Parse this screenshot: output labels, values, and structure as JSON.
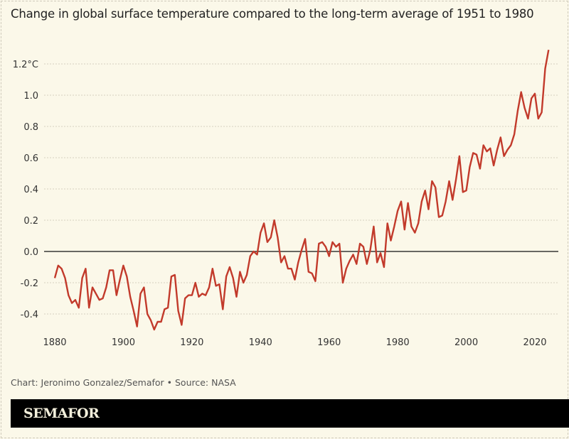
{
  "chart_data": {
    "type": "line",
    "title": "Change in global surface temperature compared to the long-term average of 1951 to 1980",
    "xlabel": "",
    "ylabel": "",
    "xlim": [
      1880,
      2024
    ],
    "ylim": [
      -0.5,
      1.3
    ],
    "x_ticks": [
      "1880",
      "1900",
      "1920",
      "1940",
      "1960",
      "1980",
      "2000",
      "2020"
    ],
    "y_ticks": [
      {
        "value": 1.2,
        "label": "1.2°C"
      },
      {
        "value": 1.0,
        "label": "1.0"
      },
      {
        "value": 0.8,
        "label": "0.8"
      },
      {
        "value": 0.6,
        "label": "0.6"
      },
      {
        "value": 0.4,
        "label": "0.4"
      },
      {
        "value": 0.2,
        "label": "0.2"
      },
      {
        "value": 0.0,
        "label": "0.0"
      },
      {
        "value": -0.2,
        "label": "-0.2"
      },
      {
        "value": -0.4,
        "label": "-0.4"
      }
    ],
    "grid": true,
    "line_color": "#c23a2b",
    "x_start": 1880,
    "values": [
      -0.17,
      -0.09,
      -0.11,
      -0.17,
      -0.28,
      -0.33,
      -0.31,
      -0.36,
      -0.17,
      -0.11,
      -0.36,
      -0.23,
      -0.27,
      -0.31,
      -0.3,
      -0.23,
      -0.12,
      -0.12,
      -0.28,
      -0.18,
      -0.09,
      -0.16,
      -0.29,
      -0.38,
      -0.48,
      -0.27,
      -0.23,
      -0.4,
      -0.44,
      -0.5,
      -0.45,
      -0.45,
      -0.37,
      -0.36,
      -0.16,
      -0.15,
      -0.38,
      -0.47,
      -0.3,
      -0.28,
      -0.28,
      -0.2,
      -0.29,
      -0.27,
      -0.28,
      -0.23,
      -0.11,
      -0.22,
      -0.21,
      -0.37,
      -0.16,
      -0.1,
      -0.17,
      -0.29,
      -0.13,
      -0.2,
      -0.15,
      -0.03,
      0.0,
      -0.02,
      0.12,
      0.18,
      0.06,
      0.09,
      0.2,
      0.09,
      -0.07,
      -0.03,
      -0.11,
      -0.11,
      -0.18,
      -0.07,
      0.01,
      0.08,
      -0.13,
      -0.14,
      -0.19,
      0.05,
      0.06,
      0.03,
      -0.03,
      0.06,
      0.03,
      0.05,
      -0.2,
      -0.11,
      -0.06,
      -0.02,
      -0.08,
      0.05,
      0.03,
      -0.08,
      0.01,
      0.16,
      -0.07,
      -0.01,
      -0.1,
      0.18,
      0.07,
      0.16,
      0.26,
      0.32,
      0.14,
      0.31,
      0.16,
      0.12,
      0.18,
      0.32,
      0.39,
      0.27,
      0.45,
      0.41,
      0.22,
      0.23,
      0.32,
      0.45,
      0.33,
      0.46,
      0.61,
      0.38,
      0.39,
      0.54,
      0.63,
      0.62,
      0.53,
      0.68,
      0.64,
      0.66,
      0.55,
      0.65,
      0.73,
      0.61,
      0.65,
      0.68,
      0.75,
      0.9,
      1.02,
      0.92,
      0.85,
      0.98,
      1.01,
      0.85,
      0.89,
      1.17,
      1.29
    ]
  },
  "footer": {
    "credit": "Chart: Jeronimo Gonzalez/Semafor • Source: NASA",
    "logo": "SEMAFOR"
  }
}
